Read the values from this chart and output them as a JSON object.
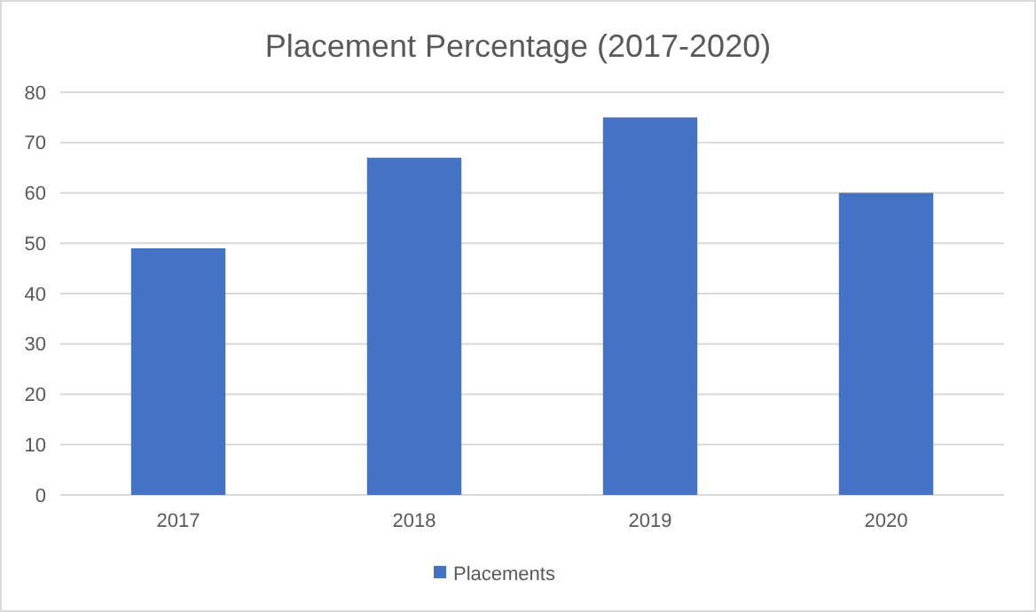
{
  "chart_data": {
    "type": "bar",
    "title": "Placement Percentage (2017-2020)",
    "categories": [
      "2017",
      "2018",
      "2019",
      "2020"
    ],
    "series": [
      {
        "name": "Placements",
        "color": "#4472c4",
        "values": [
          49,
          67,
          75,
          60
        ]
      }
    ],
    "ylim": [
      0,
      80
    ],
    "yticks": [
      0,
      10,
      20,
      30,
      40,
      50,
      60,
      70,
      80
    ],
    "grid": "y",
    "legend": "bottom"
  }
}
